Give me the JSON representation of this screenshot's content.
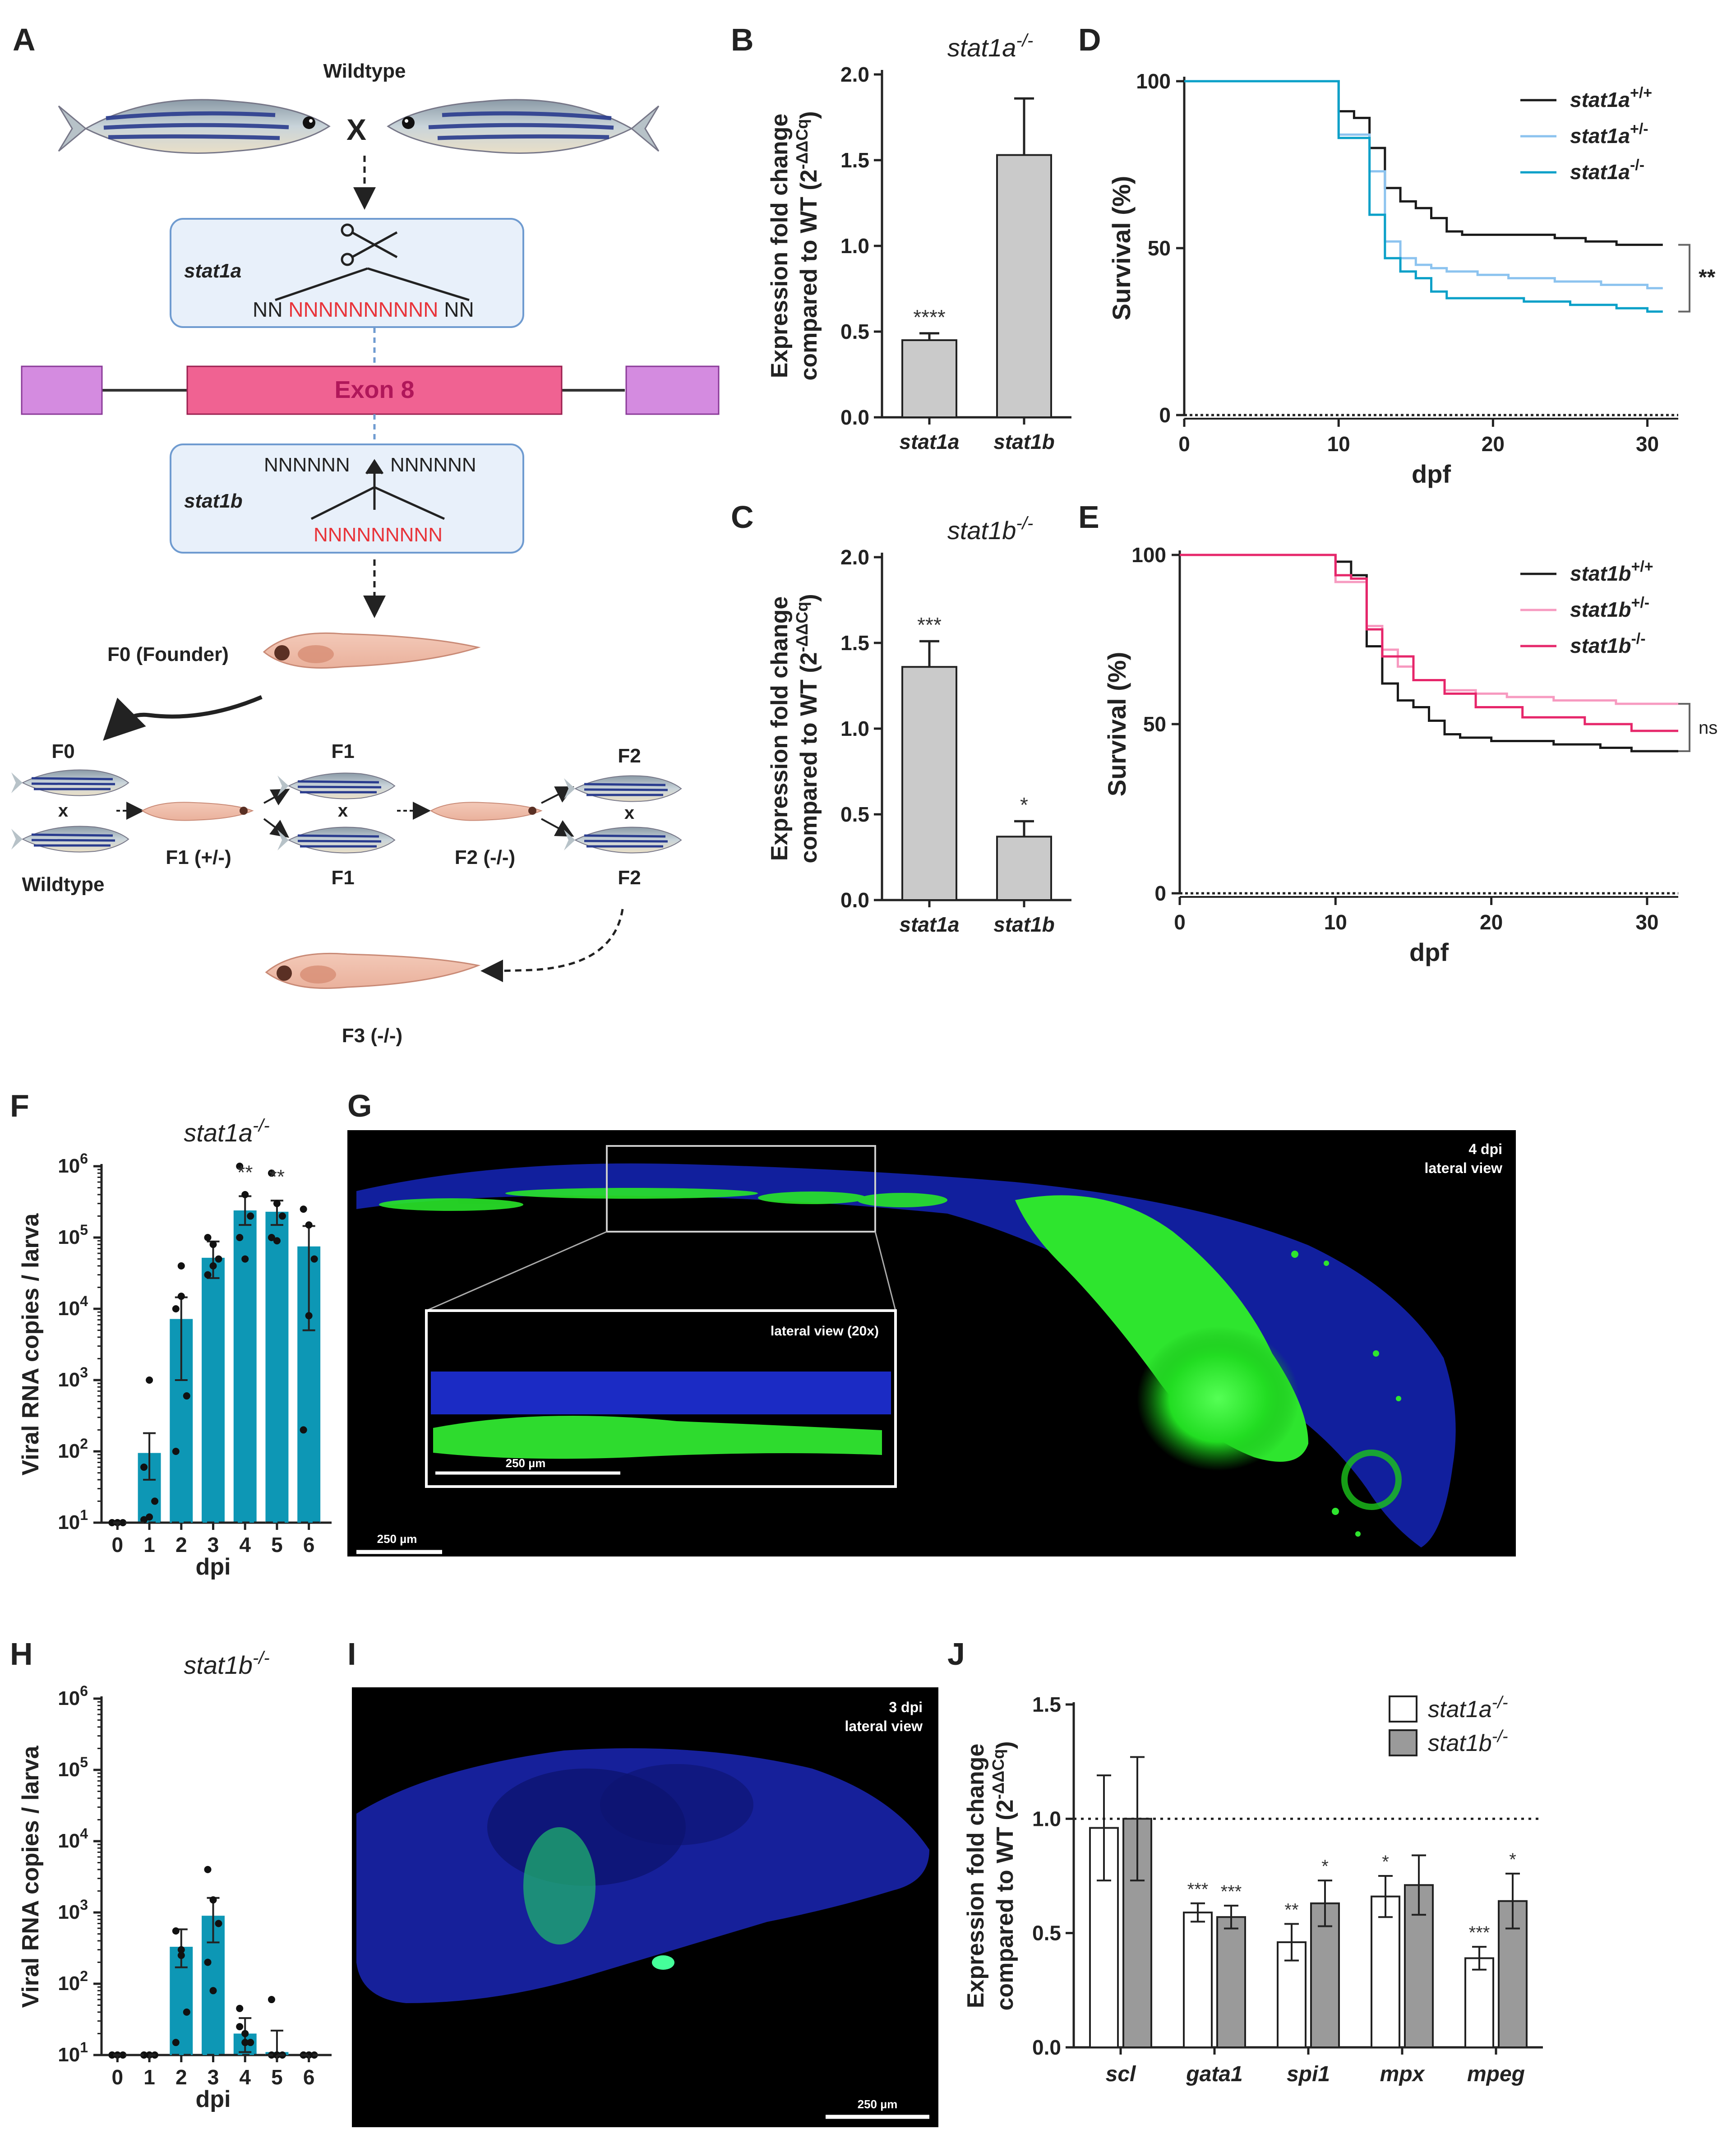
{
  "panel_letters": [
    "A",
    "B",
    "C",
    "D",
    "E",
    "F",
    "G",
    "H",
    "I",
    "J"
  ],
  "diagram": {
    "wildtype_label": "Wildtype",
    "cross_symbol": "X",
    "stat1a_label": "stat1a",
    "stat1a_seq_left": "NN ",
    "stat1a_seq_red": "NNNNNNNNNN",
    "stat1a_seq_right": " NN",
    "exon_label": "Exon 8",
    "stat1b_label": "stat1b",
    "stat1b_seq_left": "NNNNNN",
    "stat1b_seq_right": "NNNNNN",
    "stat1b_seq_red": "NNNNNNNNN",
    "f0_founder": "F0 (Founder)",
    "f0": "F0",
    "x": "x",
    "wildtype2": "Wildtype",
    "f1_het": "F1 (+/-)",
    "f1": "F1",
    "f2_hom": "F2 (-/-)",
    "f2": "F2",
    "f3_hom": "F3 (-/-)",
    "colors": {
      "red_seq": "#e8343a",
      "exon_fill": "#f06292",
      "flank_fill": "#d48be0",
      "box_fill": "#e8f0fa",
      "box_stroke": "#6f9bd0"
    }
  },
  "images": {
    "g_corner": [
      "4 dpi",
      "lateral view"
    ],
    "g_inset": "lateral view (20x)",
    "g_inset_scale": "250 µm",
    "g_scale": "250 µm",
    "i_corner": [
      "3 dpi",
      "lateral view"
    ],
    "i_scale": "250 µm"
  },
  "chart_data": [
    {
      "panel": "B",
      "type": "bar",
      "title": "stat1a",
      "title_sup": "-/-",
      "ylabel_line1": "Expression fold change",
      "ylabel_line2": "compared to WT (2",
      "ylabel_sup": "-ΔΔCq",
      "ylabel_end": ")",
      "categories": [
        "stat1a",
        "stat1b"
      ],
      "values": [
        0.45,
        1.53
      ],
      "errors": [
        0.04,
        0.33
      ],
      "significance": [
        "****",
        ""
      ],
      "ylim": [
        0,
        2.0
      ],
      "yticks": [
        "0.0",
        "0.5",
        "1.0",
        "1.5",
        "2.0"
      ],
      "colors": {
        "bar": "#cacaca"
      }
    },
    {
      "panel": "C",
      "type": "bar",
      "title": "stat1b",
      "title_sup": "-/-",
      "ylabel_line1": "Expression fold change",
      "ylabel_line2": "compared to WT (2",
      "ylabel_sup": "-ΔΔCq",
      "ylabel_end": ")",
      "categories": [
        "stat1a",
        "stat1b"
      ],
      "values": [
        1.36,
        0.37
      ],
      "errors": [
        0.15,
        0.09
      ],
      "significance": [
        "***",
        "*"
      ],
      "ylim": [
        0,
        2.0
      ],
      "yticks": [
        "0.0",
        "0.5",
        "1.0",
        "1.5",
        "2.0"
      ],
      "colors": {
        "bar": "#cacaca"
      }
    },
    {
      "panel": "D",
      "type": "line",
      "xlabel": "dpf",
      "ylabel": "Survival (%)",
      "xlim": [
        0,
        32
      ],
      "ylim": [
        0,
        100
      ],
      "xticks": [
        "0",
        "10",
        "20",
        "30"
      ],
      "yticks": [
        "0",
        "50",
        "100"
      ],
      "significance": "**",
      "series": [
        {
          "name": "stat1a",
          "sup": "+/+",
          "color": "#1a1a1a",
          "steps": [
            [
              0,
              100
            ],
            [
              10,
              91
            ],
            [
              11,
              89
            ],
            [
              12,
              80
            ],
            [
              13,
              68
            ],
            [
              14,
              64
            ],
            [
              15,
              62
            ],
            [
              16,
              59
            ],
            [
              17,
              55
            ],
            [
              18,
              54
            ],
            [
              24,
              53
            ],
            [
              26,
              52
            ],
            [
              28,
              51
            ],
            [
              31,
              51
            ]
          ]
        },
        {
          "name": "stat1a",
          "sup": "+/-",
          "color": "#8cc3ef",
          "steps": [
            [
              0,
              100
            ],
            [
              10,
              84
            ],
            [
              12,
              73
            ],
            [
              13,
              52
            ],
            [
              14,
              47
            ],
            [
              15,
              45
            ],
            [
              16,
              44
            ],
            [
              17,
              43
            ],
            [
              19,
              42
            ],
            [
              21,
              41
            ],
            [
              24,
              40
            ],
            [
              27,
              39
            ],
            [
              30,
              38
            ],
            [
              31,
              38
            ]
          ]
        },
        {
          "name": "stat1a",
          "sup": "-/-",
          "color": "#0aa0c8",
          "steps": [
            [
              0,
              100
            ],
            [
              10,
              83
            ],
            [
              12,
              60
            ],
            [
              13,
              47
            ],
            [
              14,
              43
            ],
            [
              15,
              41
            ],
            [
              16,
              37
            ],
            [
              17,
              35
            ],
            [
              22,
              34
            ],
            [
              25,
              33
            ],
            [
              28,
              32
            ],
            [
              30,
              31
            ],
            [
              31,
              31
            ]
          ]
        }
      ]
    },
    {
      "panel": "E",
      "type": "line",
      "xlabel": "dpf",
      "ylabel": "Survival (%)",
      "xlim": [
        0,
        32
      ],
      "ylim": [
        0,
        100
      ],
      "xticks": [
        "0",
        "10",
        "20",
        "30"
      ],
      "yticks": [
        "0",
        "50",
        "100"
      ],
      "significance": "ns",
      "series": [
        {
          "name": "stat1b",
          "sup": "+/+",
          "color": "#1a1a1a",
          "steps": [
            [
              0,
              100
            ],
            [
              10,
              98
            ],
            [
              11,
              94
            ],
            [
              12,
              73
            ],
            [
              13,
              62
            ],
            [
              14,
              57
            ],
            [
              15,
              55
            ],
            [
              16,
              51
            ],
            [
              17,
              47
            ],
            [
              18,
              46
            ],
            [
              20,
              45
            ],
            [
              24,
              44
            ],
            [
              27,
              43
            ],
            [
              29,
              42
            ],
            [
              32,
              42
            ]
          ]
        },
        {
          "name": "stat1b",
          "sup": "+/-",
          "color": "#f79ac0",
          "steps": [
            [
              0,
              100
            ],
            [
              10,
              92
            ],
            [
              12,
              79
            ],
            [
              13,
              72
            ],
            [
              14,
              67
            ],
            [
              15,
              63
            ],
            [
              17,
              60
            ],
            [
              19,
              59
            ],
            [
              21,
              58
            ],
            [
              24,
              57
            ],
            [
              28,
              56
            ],
            [
              32,
              56
            ]
          ]
        },
        {
          "name": "stat1b",
          "sup": "-/-",
          "color": "#e6266a",
          "steps": [
            [
              0,
              100
            ],
            [
              10,
              94
            ],
            [
              11,
              93
            ],
            [
              12,
              78
            ],
            [
              13,
              70
            ],
            [
              15,
              63
            ],
            [
              17,
              59
            ],
            [
              19,
              55
            ],
            [
              22,
              52
            ],
            [
              26,
              50
            ],
            [
              29,
              48
            ],
            [
              32,
              48
            ]
          ]
        }
      ]
    },
    {
      "panel": "F",
      "type": "bar",
      "title": "stat1a",
      "title_sup": "-/-",
      "ylabel": "Viral  RNA copies / larva",
      "xlabel": "dpi",
      "yscale": "log",
      "ylim": [
        1,
        6
      ],
      "yticks": [
        "1",
        "2",
        "3",
        "4",
        "5",
        "6"
      ],
      "categories": [
        "0",
        "1",
        "2",
        "3",
        "4",
        "5",
        "6"
      ],
      "values": [
        10,
        95,
        7200,
        52000,
        240000,
        230000,
        75000
      ],
      "errors_upper": [
        10,
        180,
        14500,
        88000,
        380000,
        330000,
        145000
      ],
      "errors_lower": [
        10,
        40,
        1000,
        27000,
        150000,
        150000,
        5000
      ],
      "points": [
        [
          10,
          10,
          10,
          10,
          10
        ],
        [
          11,
          12,
          20,
          60,
          1000
        ],
        [
          10000,
          15000,
          600,
          100,
          40000
        ],
        [
          100000,
          80000,
          50000,
          30000,
          40000
        ],
        [
          1000000,
          400000,
          200000,
          100000,
          50000
        ],
        [
          800000,
          300000,
          200000,
          100000,
          90000
        ],
        [
          250000,
          150000,
          50000,
          200,
          8000
        ]
      ],
      "significance": [
        "",
        "",
        "",
        "",
        "**",
        "**",
        ""
      ],
      "detection_limit": 10,
      "colors": {
        "bar": "#0d97b5"
      }
    },
    {
      "panel": "H",
      "type": "bar",
      "title": "stat1b",
      "title_sup": "-/-",
      "ylabel": "Viral  RNA copies / larva",
      "xlabel": "dpi",
      "yscale": "log",
      "ylim": [
        1,
        6
      ],
      "yticks": [
        "1",
        "2",
        "3",
        "4",
        "5",
        "6"
      ],
      "categories": [
        "0",
        "1",
        "2",
        "3",
        "4",
        "5",
        "6"
      ],
      "values": [
        10,
        10,
        330,
        900,
        20,
        11,
        10
      ],
      "errors_upper": [
        10,
        10,
        580,
        1600,
        33,
        22,
        10
      ],
      "errors_lower": [
        10,
        10,
        170,
        380,
        11,
        10,
        10
      ],
      "points": [
        [
          10,
          10,
          10,
          10,
          10
        ],
        [
          10,
          10,
          10,
          10,
          10
        ],
        [
          550,
          250,
          40,
          15,
          300
        ],
        [
          4000,
          1500,
          700,
          200,
          80
        ],
        [
          45,
          20,
          15,
          25,
          15
        ],
        [
          60,
          10,
          10,
          10,
          10
        ],
        [
          10,
          10,
          10,
          10,
          10
        ]
      ],
      "significance": [
        "",
        "",
        "",
        "",
        "",
        "",
        ""
      ],
      "detection_limit": 10,
      "colors": {
        "bar": "#0d97b5"
      }
    },
    {
      "panel": "J",
      "type": "bar",
      "ylabel_line1": "Expression fold change",
      "ylabel_line2": "compared to WT (2",
      "ylabel_sup": "-ΔΔCq",
      "ylabel_end": ")",
      "categories": [
        "scl",
        "gata1",
        "spi1",
        "mpx",
        "mpeg"
      ],
      "series": [
        {
          "name": "stat1a",
          "sup": "-/-",
          "color": "#ffffff",
          "values": [
            0.96,
            0.59,
            0.46,
            0.66,
            0.39
          ],
          "errors": [
            0.23,
            0.04,
            0.08,
            0.09,
            0.05
          ],
          "significance": [
            "",
            "***",
            "**",
            "*",
            "***"
          ]
        },
        {
          "name": "stat1b",
          "sup": "-/-",
          "color": "#9a9a9a",
          "values": [
            1.0,
            0.57,
            0.63,
            0.71,
            0.64
          ],
          "errors": [
            0.27,
            0.05,
            0.1,
            0.13,
            0.12
          ],
          "significance": [
            "",
            "***",
            "*",
            "",
            "*"
          ]
        }
      ],
      "reference_line": 1.0,
      "ylim": [
        0,
        1.5
      ],
      "yticks": [
        "0.0",
        "0.5",
        "1.0",
        "1.5"
      ]
    }
  ]
}
